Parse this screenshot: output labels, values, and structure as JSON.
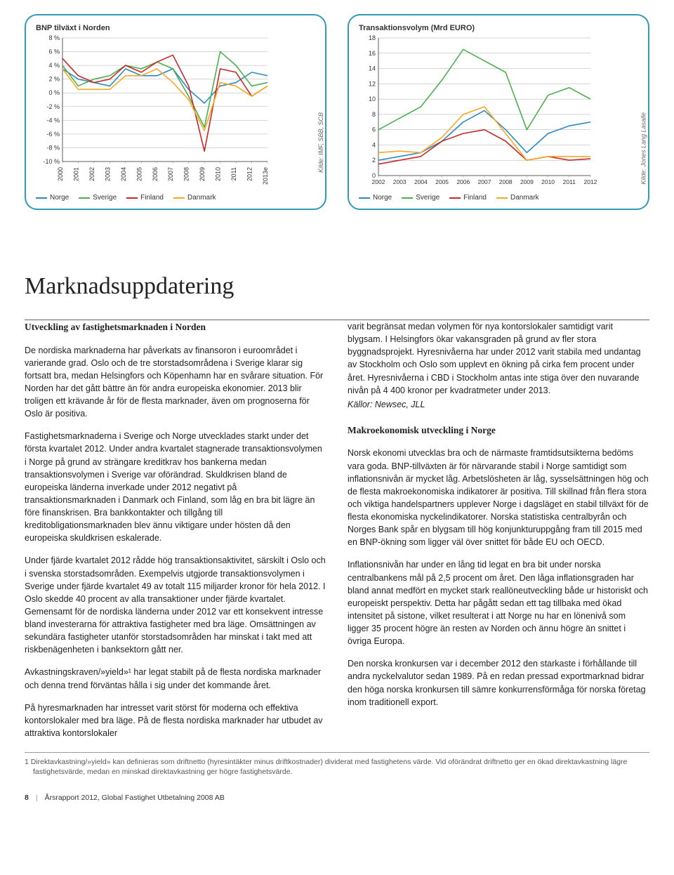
{
  "chart1": {
    "title": "BNP tilväxt i Norden",
    "source": "Kilde: IMF, SBB, SCB",
    "type": "line",
    "x_labels": [
      "2000",
      "2001",
      "2002",
      "2003",
      "2004",
      "2005",
      "2006",
      "2007",
      "2008",
      "2009",
      "2010",
      "2011",
      "2012",
      "2013e"
    ],
    "y_ticks": [
      "8 %",
      "6 %",
      "4 %",
      "2 %",
      "0 %",
      "-2 %",
      "-4 %",
      "-6 %",
      "-8 %",
      "-10 %"
    ],
    "ylim": [
      -10,
      8
    ],
    "series": [
      {
        "label": "Norge",
        "color": "#2e8bc0",
        "values": [
          3.5,
          2.0,
          1.5,
          1.0,
          3.5,
          2.5,
          2.5,
          3.5,
          0.5,
          -1.5,
          1.0,
          1.5,
          3.0,
          2.5
        ]
      },
      {
        "label": "Sverige",
        "color": "#4caf50",
        "values": [
          4.0,
          1.0,
          2.0,
          2.5,
          4.0,
          3.5,
          4.5,
          3.5,
          -0.5,
          -5.0,
          6.0,
          4.0,
          1.0,
          1.5
        ]
      },
      {
        "label": "Finland",
        "color": "#c62828",
        "values": [
          5.0,
          2.5,
          1.5,
          2.0,
          4.0,
          3.0,
          4.5,
          5.5,
          1.0,
          -8.5,
          3.5,
          3.0,
          -0.5,
          1.0
        ]
      },
      {
        "label": "Danmark",
        "color": "#f9a825",
        "values": [
          3.5,
          0.5,
          0.5,
          0.5,
          2.5,
          2.5,
          3.5,
          1.5,
          -1.0,
          -5.5,
          1.5,
          1.0,
          -0.5,
          1.0
        ]
      }
    ],
    "grid_color": "#999",
    "background": "#ffffff",
    "line_width": 1.6
  },
  "chart2": {
    "title": "Transaktionsvolym (Mrd EURO)",
    "source": "Kilde: Jones Lang Lasalle",
    "type": "line",
    "x_labels": [
      "2002",
      "2003",
      "2004",
      "2005",
      "2006",
      "2007",
      "2008",
      "2009",
      "2010",
      "2011",
      "2012"
    ],
    "y_ticks": [
      "18",
      "16",
      "14",
      "12",
      "10",
      "8",
      "6",
      "4",
      "2",
      "0"
    ],
    "ylim": [
      0,
      18
    ],
    "series": [
      {
        "label": "Norge",
        "color": "#2e8bc0",
        "values": [
          2.0,
          2.5,
          3.0,
          4.5,
          7.0,
          8.5,
          6.0,
          3.0,
          5.5,
          6.5,
          7.0
        ]
      },
      {
        "label": "Sverige",
        "color": "#4caf50",
        "values": [
          6.0,
          7.5,
          9.0,
          12.5,
          16.5,
          15.0,
          13.5,
          6.0,
          10.5,
          11.5,
          10.0
        ]
      },
      {
        "label": "Finland",
        "color": "#c62828",
        "values": [
          1.5,
          2.0,
          2.5,
          4.5,
          5.5,
          6.0,
          4.5,
          2.0,
          2.5,
          2.0,
          2.2
        ]
      },
      {
        "label": "Danmark",
        "color": "#f9a825",
        "values": [
          3.0,
          3.2,
          3.0,
          5.0,
          8.0,
          9.0,
          5.5,
          2.0,
          2.5,
          2.5,
          2.5
        ]
      }
    ],
    "grid_color": "#999",
    "background": "#ffffff",
    "line_width": 1.6
  },
  "heading": "Marknadsuppdatering",
  "left_col": {
    "h1": "Utveckling av fastighetsmarknaden i Norden",
    "p1": "De nordiska marknaderna har påverkats av finansoron i euroområdet i varierande grad. Oslo och de tre storstadsområdena i Sverige klarar sig fortsatt bra, medan Helsingfors och Köpenhamn har en svårare situation. För Norden har det gått bättre än för andra europeiska ekonomier. 2013 blir troligen ett krävande år för de flesta marknader, även om prognoserna för Oslo är positiva.",
    "p2": "Fastighetsmarknaderna i Sverige och Norge utvecklades starkt under det första kvartalet 2012. Under andra kvartalet stagnerade transaktionsvolymen i Norge på grund av strängare kreditkrav hos bankerna medan transaktionsvolymen i Sverige var oförändrad. Skuldkrisen bland de europeiska länderna inverkade under 2012 negativt på transaktionsmarknaden i Danmark och Finland, som låg en bra bit lägre än före finanskrisen. Bra bankkontakter och tillgång till kreditobligationsmarknaden blev ännu viktigare under hösten då den europeiska skuldkrisen eskalerade.",
    "p3": "Under fjärde kvartalet 2012 rådde hög transaktionsaktivitet, särskilt i Oslo och i svenska storstadsområden. Exempelvis utgjorde transaktionsvolymen i Sverige under fjärde kvartalet 49 av totalt 115 miljarder kronor för hela 2012. I Oslo skedde 40 procent av alla transaktioner under fjärde kvartalet. Gemensamt för de nordiska länderna under 2012 var ett konsekvent intresse bland investerarna för attraktiva fastigheter med bra läge. Omsättningen av sekundära fastigheter utanför storstadsområden har minskat i takt med att riskbenägenheten i banksektorn gått ner.",
    "p4": "Avkastningskraven/»yield»¹ har legat stabilt på de flesta nordiska marknader och denna trend förväntas hålla i sig under det kommande året.",
    "p5": "På hyresmarknaden har intresset varit störst för moderna och effektiva kontorslokaler med bra läge. På de flesta nordiska marknader har utbudet av attraktiva kontorslokaler"
  },
  "right_col": {
    "p1": "varit begränsat medan volymen för nya kontorslokaler samtidigt varit blygsam. I Helsingfors ökar vakansgraden på grund av fler stora byggnadsprojekt. Hyresnivåerna har under 2012 varit stabila med undantag av Stockholm och Oslo som upplevt en ökning på cirka fem procent under året. Hyresnivåerna i CBD i Stockholm antas inte stiga över den nuvarande nivån på 4 400 kronor per kvadratmeter under 2013.",
    "sources": "Källor: Newsec, JLL",
    "h2": "Makroekonomisk utveckling i Norge",
    "p2": "Norsk ekonomi utvecklas bra och de närmaste framtidsutsikterna bedöms vara goda.  BNP-tillväxten är för närvarande stabil i Norge samtidigt som inflationsnivån är mycket låg. Arbetslösheten är låg, sysselsättningen hög och de flesta makroekonomiska indikatorer är positiva. Till skillnad från flera stora och viktiga handelspartners upplever Norge i dagsläget en stabil tillväxt för de flesta ekonomiska nyckelindikatorer. Norska statistiska centralbyrån och Norges Bank spår en blygsam till hög konjunkturuppgång fram till 2015 med en BNP-ökning som ligger väl över snittet för både EU och OECD.",
    "p3": "Inflationsnivån har under en lång tid legat en bra bit under norska centralbankens mål på 2,5 procent om året. Den låga inflationsgraden har bland annat medfört en mycket stark reallöneutveckling både ur historiskt och europeiskt perspektiv. Detta har pågått sedan ett tag tillbaka med ökad intensitet på sistone, vilket resulterat i att Norge nu har en lönenivå som ligger 35 procent högre än resten av Norden och ännu högre än snittet i övriga Europa.",
    "p4": "Den norska kronkursen var i december 2012 den starkaste i förhållande till andra nyckelvalutor sedan 1989. På en redan pressad exportmarknad bidrar den höga norska kronkursen till sämre konkurrensförmåga för norska företag inom traditionell export."
  },
  "footnote": "1  Direktavkastning/»yield» kan definieras som driftnetto (hyresintäkter minus driftkostnader) dividerat med fastighetens värde. Vid oförändrat driftnetto ger en ökad direktavkastning lägre fastighetsvärde, medan en minskad direktavkastning ger högre fastighetsvärde.",
  "footer": {
    "page": "8",
    "text": "Årsrapport 2012, Global Fastighet Utbetalning 2008 AB"
  }
}
